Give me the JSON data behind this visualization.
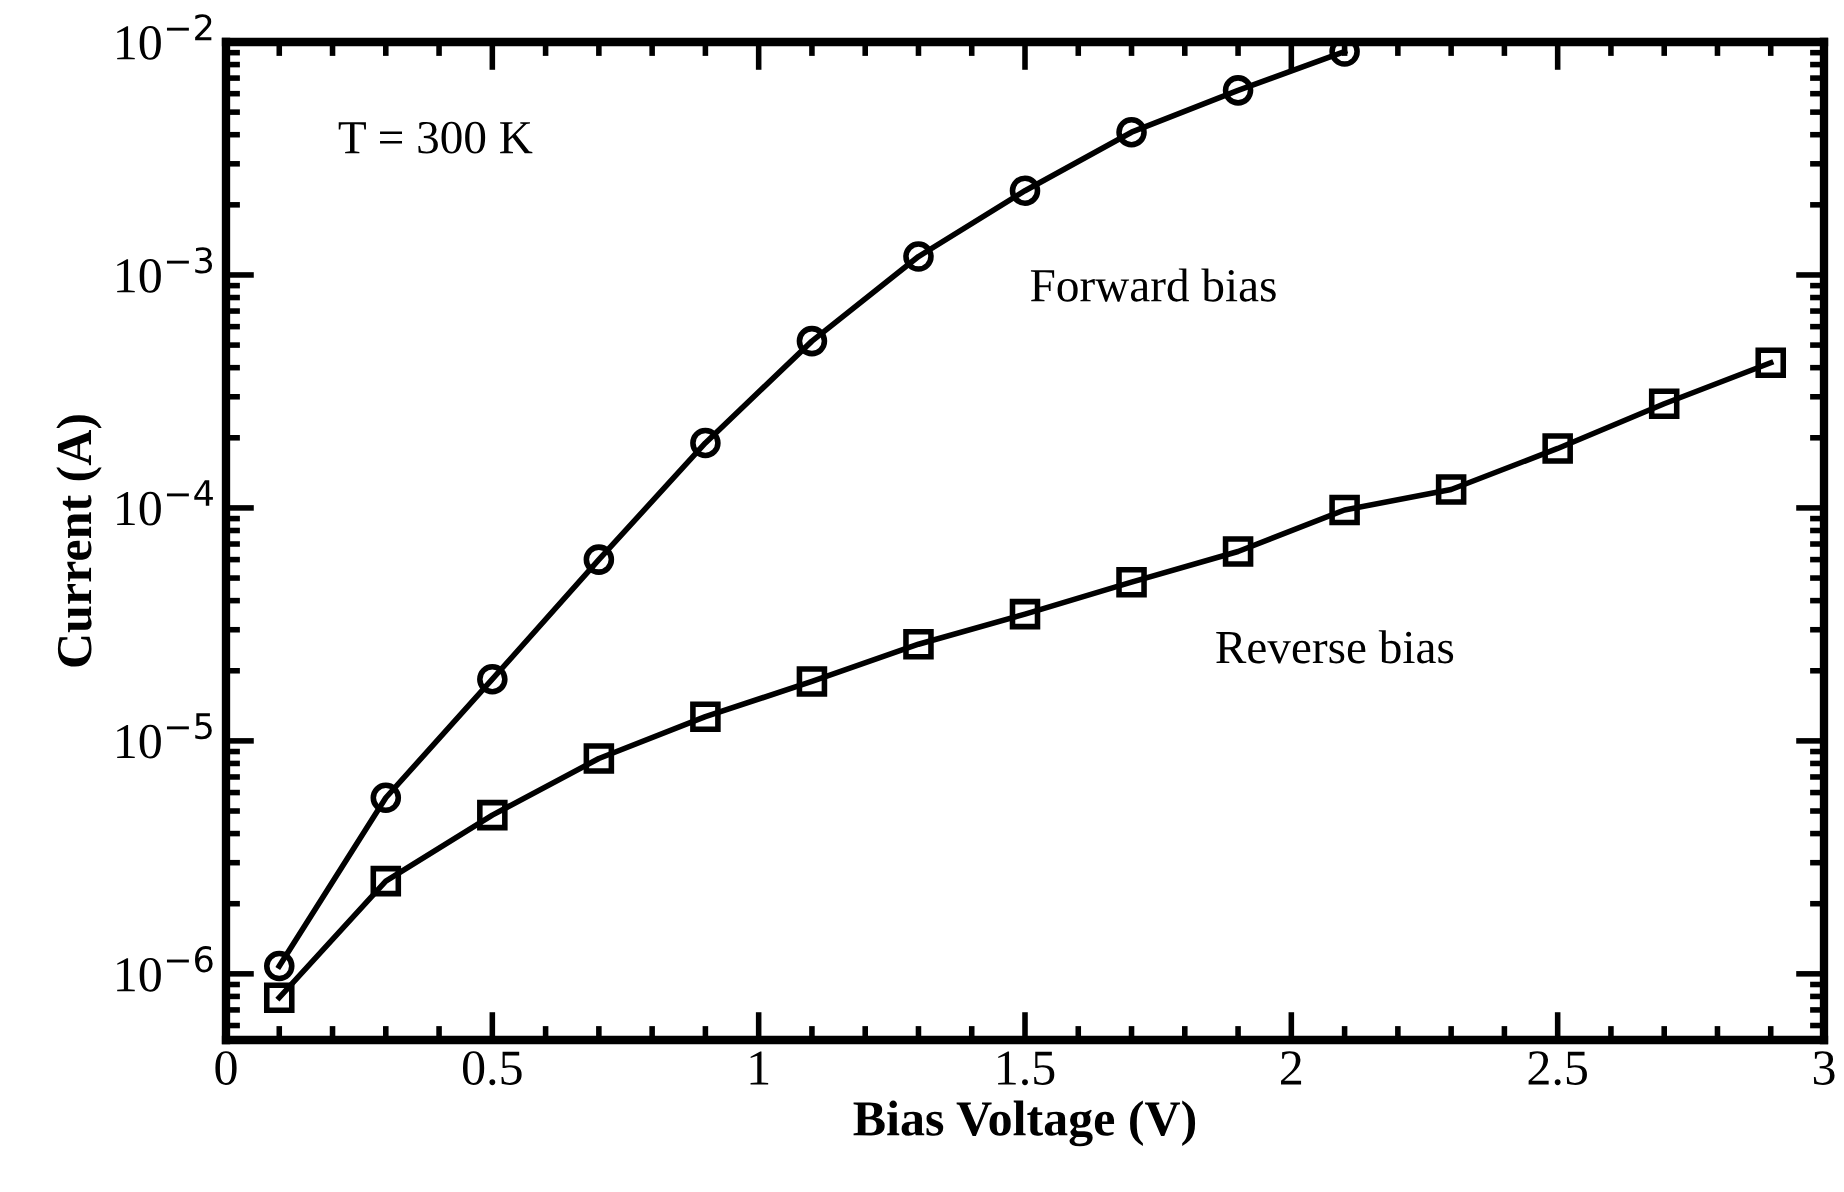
{
  "chart_data": {
    "type": "line",
    "xlabel": "Bias Voltage (V)",
    "ylabel": "Current (A)",
    "annotations": [
      "T = 300 K"
    ],
    "log": "y",
    "line_style": "solid",
    "grid": false,
    "legend": false,
    "xlim": [
      0,
      3
    ],
    "xticks": [
      0,
      0.5,
      1,
      1.5,
      2,
      2.5,
      3
    ],
    "ylim": [
      5.2e-07,
      0.01
    ],
    "yticks": [
      {
        "value": 1e-06,
        "label": "10$^{−6}$"
      },
      {
        "value": 1e-05,
        "label": "10$^{−5}$"
      },
      {
        "value": 0.0001,
        "label": "10$^{−4}$"
      },
      {
        "value": 0.001,
        "label": "10$^{−3}$"
      },
      {
        "value": 0.01,
        "label": "10$^{−2}$"
      }
    ],
    "series": [
      {
        "name": "Forward bias",
        "color": "#000000",
        "marker": "circle",
        "x": [
          0.1,
          0.3,
          0.5,
          0.7,
          0.9,
          1.1,
          1.3,
          1.5,
          1.7,
          1.9,
          2.1
        ],
        "values": [
          1.08e-06,
          5.7e-06,
          1.84e-05,
          6e-05,
          0.00019,
          0.00052,
          0.0012,
          0.0023,
          0.0041,
          0.0062,
          0.0091
        ]
      },
      {
        "name": "Reverse bias",
        "color": "#000000",
        "marker": "square",
        "x": [
          0.1,
          0.3,
          0.5,
          0.7,
          0.9,
          1.1,
          1.3,
          1.5,
          1.7,
          1.9,
          2.1,
          2.3,
          2.5,
          2.7,
          2.9
        ],
        "values": [
          7.9e-07,
          2.5e-06,
          4.8e-06,
          8.4e-06,
          1.27e-05,
          1.8e-05,
          2.6e-05,
          3.5e-05,
          4.8e-05,
          6.5e-05,
          9.8e-05,
          0.00012,
          0.00018,
          0.00028,
          0.00042
        ]
      }
    ]
  }
}
